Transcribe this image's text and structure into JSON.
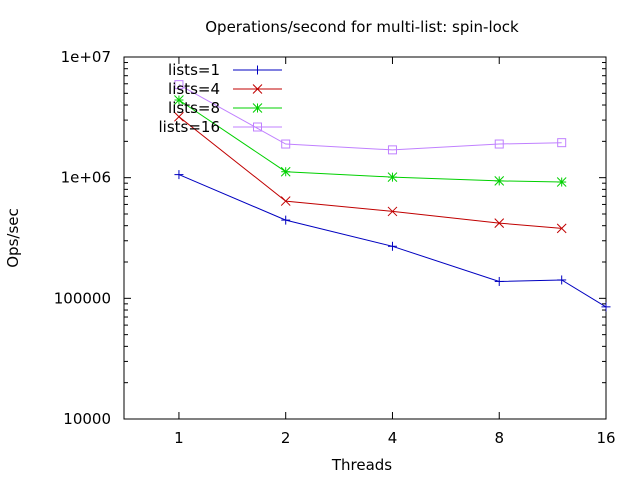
{
  "chart_data": {
    "type": "line",
    "title": "Operations/second for multi-list: spin-lock",
    "xlabel": "Threads",
    "ylabel": "Ops/sec",
    "x_scale": "log2",
    "y_scale": "log10",
    "xlim": [
      0.7,
      16
    ],
    "ylim": [
      10000,
      10000000
    ],
    "x_ticks": [
      {
        "value": 1,
        "label": "1"
      },
      {
        "value": 2,
        "label": "2"
      },
      {
        "value": 4,
        "label": "4"
      },
      {
        "value": 8,
        "label": "8"
      },
      {
        "value": 16,
        "label": "16"
      }
    ],
    "y_ticks": [
      {
        "value": 10000,
        "label": "10000"
      },
      {
        "value": 100000,
        "label": "100000"
      },
      {
        "value": 1000000,
        "label": "1e+06"
      },
      {
        "value": 10000000,
        "label": "1e+07"
      }
    ],
    "grid": false,
    "legend_position": "top-left",
    "series": [
      {
        "name": "lists=1",
        "color": "#0000c0",
        "marker": "plus",
        "x": [
          1,
          2,
          4,
          8,
          12,
          16
        ],
        "y": [
          1060000,
          445000,
          270000,
          138000,
          142000,
          85000
        ]
      },
      {
        "name": "lists=4",
        "color": "#c00000",
        "marker": "cross",
        "x": [
          1,
          2,
          4,
          8,
          12
        ],
        "y": [
          3200000,
          640000,
          525000,
          420000,
          380000
        ]
      },
      {
        "name": "lists=8",
        "color": "#00d000",
        "marker": "star",
        "x": [
          1,
          2,
          4,
          8,
          12
        ],
        "y": [
          4400000,
          1120000,
          1010000,
          940000,
          920000
        ]
      },
      {
        "name": "lists=16",
        "color": "#c080ff",
        "marker": "square",
        "x": [
          1,
          2,
          4,
          8,
          12
        ],
        "y": [
          5900000,
          1900000,
          1700000,
          1900000,
          1950000
        ]
      }
    ]
  }
}
